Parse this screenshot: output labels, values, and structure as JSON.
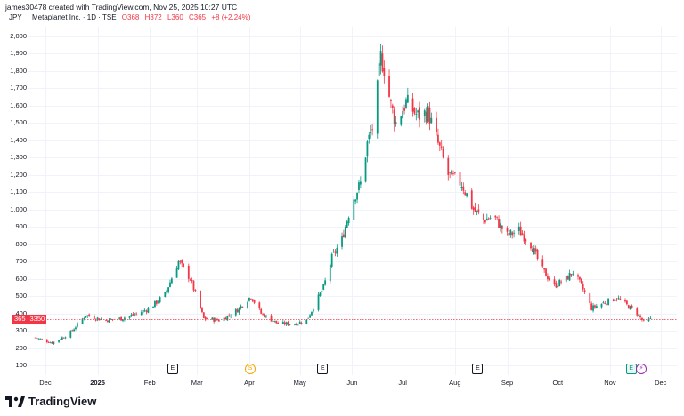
{
  "header": {
    "created_by": "james30478 created with TradingView.com, Nov 25, 2025 10:27 UTC",
    "symbol": "Metaplanet Inc. · 1D · TSE",
    "ohlc": {
      "open": "O368",
      "high": "H372",
      "low": "L360",
      "close": "C365",
      "change": "+8 (+2.24%)"
    }
  },
  "price_scale_currency": "JPY",
  "current_price_label": "365",
  "countdown_label": "3350",
  "colors": {
    "up": "#089981",
    "down": "#f23645",
    "grid": "#f0f3fa",
    "price_line": "#f23645"
  },
  "events": [
    {
      "symbol": "E",
      "kind": "earnings",
      "date": "2025-02-14"
    },
    {
      "symbol": "S",
      "kind": "split",
      "date": "2025-04-01"
    },
    {
      "symbol": "E",
      "kind": "earnings",
      "date": "2025-05-14"
    },
    {
      "symbol": "E",
      "kind": "earnings",
      "date": "2025-08-14"
    },
    {
      "symbol": "E",
      "kind": "earnings",
      "date": "2025-11-13"
    },
    {
      "symbol": "⚡",
      "kind": "news",
      "date": "2025-11-19"
    }
  ],
  "brand": "TradingView",
  "chart_data": {
    "type": "candlestick",
    "title": "Metaplanet Inc. · 1D · TSE",
    "ylabel": "JPY",
    "ylim": [
      100,
      2000
    ],
    "ytick_labels": [
      "2,000",
      "1,900",
      "1,800",
      "1,700",
      "1,600",
      "1,500",
      "1,400",
      "1,300",
      "1,200",
      "1,100",
      "1,000",
      "900",
      "800",
      "700",
      "600",
      "500",
      "400",
      "300",
      "200",
      "100"
    ],
    "yticks": [
      2000,
      1900,
      1800,
      1700,
      1600,
      1500,
      1400,
      1300,
      1200,
      1100,
      1000,
      900,
      800,
      700,
      600,
      500,
      400,
      300,
      200,
      100
    ],
    "xtick_labels": [
      "Dec",
      "2025",
      "Feb",
      "Mar",
      "Apr",
      "May",
      "Jun",
      "Jul",
      "Aug",
      "Sep",
      "Oct",
      "Nov",
      "Dec"
    ],
    "xtick_dates": [
      "2024-12-01",
      "2025-01-01",
      "2025-02-01",
      "2025-03-01",
      "2025-04-01",
      "2025-05-01",
      "2025-06-01",
      "2025-07-01",
      "2025-08-01",
      "2025-09-01",
      "2025-10-01",
      "2025-11-01",
      "2025-12-01"
    ],
    "last_price": 365,
    "grid": true,
    "price_path": [
      [
        "2024-11-25",
        260
      ],
      [
        "2024-12-05",
        230
      ],
      [
        "2024-12-15",
        280
      ],
      [
        "2024-12-25",
        390
      ],
      [
        "2025-01-05",
        360
      ],
      [
        "2025-01-15",
        370
      ],
      [
        "2025-01-25",
        400
      ],
      [
        "2025-02-01",
        430
      ],
      [
        "2025-02-10",
        510
      ],
      [
        "2025-02-18",
        700
      ],
      [
        "2025-02-25",
        600
      ],
      [
        "2025-03-05",
        370
      ],
      [
        "2025-03-15",
        360
      ],
      [
        "2025-03-25",
        420
      ],
      [
        "2025-04-02",
        500
      ],
      [
        "2025-04-08",
        400
      ],
      [
        "2025-04-18",
        340
      ],
      [
        "2025-04-28",
        340
      ],
      [
        "2025-05-05",
        360
      ],
      [
        "2025-05-15",
        550
      ],
      [
        "2025-05-20",
        720
      ],
      [
        "2025-05-26",
        830
      ],
      [
        "2025-06-01",
        1050
      ],
      [
        "2025-06-06",
        1150
      ],
      [
        "2025-06-10",
        1380
      ],
      [
        "2025-06-14",
        1500
      ],
      [
        "2025-06-18",
        1880
      ],
      [
        "2025-06-20",
        1820
      ],
      [
        "2025-06-24",
        1600
      ],
      [
        "2025-06-27",
        1500
      ],
      [
        "2025-07-03",
        1620
      ],
      [
        "2025-07-10",
        1540
      ],
      [
        "2025-07-16",
        1560
      ],
      [
        "2025-07-22",
        1380
      ],
      [
        "2025-07-28",
        1200
      ],
      [
        "2025-08-05",
        1150
      ],
      [
        "2025-08-12",
        1000
      ],
      [
        "2025-08-18",
        940
      ],
      [
        "2025-08-24",
        960
      ],
      [
        "2025-09-01",
        850
      ],
      [
        "2025-09-08",
        880
      ],
      [
        "2025-09-15",
        800
      ],
      [
        "2025-09-22",
        650
      ],
      [
        "2025-09-29",
        560
      ],
      [
        "2025-10-06",
        600
      ],
      [
        "2025-10-10",
        640
      ],
      [
        "2025-10-15",
        560
      ],
      [
        "2025-10-21",
        430
      ],
      [
        "2025-10-28",
        460
      ],
      [
        "2025-11-05",
        490
      ],
      [
        "2025-11-12",
        440
      ],
      [
        "2025-11-17",
        400
      ],
      [
        "2025-11-21",
        350
      ],
      [
        "2025-11-25",
        365
      ]
    ]
  }
}
